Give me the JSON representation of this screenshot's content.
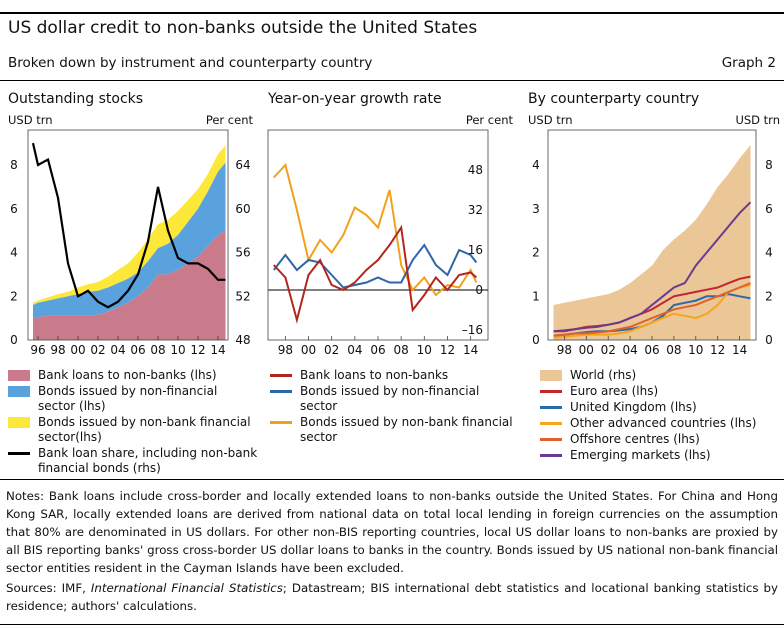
{
  "title": "US dollar credit to non-banks outside the United States",
  "subtitle": "Broken down by instrument and counterparty country",
  "graph_label": "Graph 2",
  "colors": {
    "bank_loans_area": "#c97a8b",
    "bonds_nonfin_area": "#5aa2dd",
    "bonds_nonbankfin_area": "#fde83a",
    "loan_share_line": "#000000",
    "growth_bank": "#b3261e",
    "growth_nonfin": "#2f66a8",
    "growth_nonbankfin": "#f0a11c",
    "world_area": "#ebc697",
    "euro_area": "#c1272d",
    "uk": "#2c6aa8",
    "other_adv": "#f7a51c",
    "offshore": "#e0612b",
    "emerging": "#6b3a91"
  },
  "chart_data": [
    {
      "type": "area",
      "panel_title": "Outstanding stocks",
      "ylabel_left": "USD trn",
      "ylabel_right": "Per cent",
      "x_ticks": [
        "96",
        "98",
        "00",
        "02",
        "04",
        "06",
        "08",
        "10",
        "12",
        "14"
      ],
      "x_range": [
        1995.0,
        2015.0
      ],
      "ylim_left": [
        0,
        9.6
      ],
      "ylim_right": [
        48,
        67.2
      ],
      "y_ticks_left": [
        "0",
        "2",
        "4",
        "6",
        "8"
      ],
      "y_ticks_right": [
        "48",
        "52",
        "56",
        "60",
        "64"
      ],
      "x": [
        1995.5,
        1996,
        1997,
        1998,
        1999,
        2000,
        2001,
        2002,
        2003,
        2004,
        2005,
        2006,
        2007,
        2008,
        2009,
        2010,
        2011,
        2012,
        2013,
        2014,
        2014.75
      ],
      "series": [
        {
          "name": "Bank loans to non-banks (lhs)",
          "values": [
            1.0,
            1.05,
            1.1,
            1.1,
            1.1,
            1.1,
            1.1,
            1.15,
            1.3,
            1.5,
            1.7,
            2.0,
            2.4,
            3.0,
            3.0,
            3.2,
            3.5,
            3.8,
            4.3,
            4.8,
            5.0
          ]
        },
        {
          "name": "Bonds issued by non-financial sector (lhs)",
          "values": [
            0.6,
            0.65,
            0.7,
            0.8,
            0.9,
            1.0,
            1.1,
            1.1,
            1.1,
            1.1,
            1.1,
            1.1,
            1.2,
            1.2,
            1.4,
            1.6,
            1.9,
            2.2,
            2.5,
            2.9,
            3.1
          ]
        },
        {
          "name": "Bonds issued by non-bank financial sector(lhs)",
          "values": [
            0.1,
            0.1,
            0.15,
            0.2,
            0.2,
            0.3,
            0.35,
            0.4,
            0.5,
            0.6,
            0.7,
            0.9,
            1.0,
            1.1,
            1.1,
            1.1,
            1.0,
            0.9,
            0.8,
            0.8,
            0.8
          ]
        },
        {
          "name": "Bank loan share, including non-bank financial bonds (rhs)",
          "values": [
            66.0,
            64.0,
            64.5,
            61.0,
            55.0,
            52.0,
            52.5,
            51.5,
            51.0,
            51.5,
            52.5,
            54.0,
            57.0,
            62.0,
            58.0,
            55.5,
            55.0,
            55.0,
            54.5,
            53.5,
            53.5
          ]
        }
      ],
      "legend": [
        "Bank loans to non-banks (lhs)",
        "Bonds issued by non-financial sector (lhs)",
        "Bonds issued by non-bank financial sector(lhs)",
        "Bank loan share, including non-bank financial bonds (rhs)"
      ]
    },
    {
      "type": "line",
      "panel_title": "Year-on-year growth rate",
      "ylabel_right": "Per cent",
      "x_ticks": [
        "98",
        "00",
        "02",
        "04",
        "06",
        "08",
        "10",
        "12",
        "14"
      ],
      "x_range": [
        1996.5,
        2015.5
      ],
      "ylim": [
        -20,
        64
      ],
      "y_ticks": [
        "–16",
        "0",
        "16",
        "32",
        "48"
      ],
      "x": [
        1997,
        1998,
        1999,
        2000,
        2001,
        2002,
        2003,
        2004,
        2005,
        2006,
        2007,
        2008,
        2009,
        2010,
        2011,
        2012,
        2013,
        2014,
        2014.5
      ],
      "series": [
        {
          "name": "Bank loans to non-banks",
          "values": [
            10,
            5,
            -12,
            6,
            12,
            2,
            0,
            3,
            8,
            12,
            18,
            25,
            -8,
            -2,
            5,
            0,
            6,
            7,
            5
          ]
        },
        {
          "name": "Bonds issued by non-financial sector",
          "values": [
            8,
            14,
            8,
            12,
            11,
            6,
            1,
            2,
            3,
            5,
            3,
            3,
            12,
            18,
            10,
            6,
            16,
            14,
            11
          ]
        },
        {
          "name": "Bonds issued by non-bank financial sector",
          "values": [
            45,
            50,
            32,
            12,
            20,
            15,
            22,
            33,
            30,
            25,
            40,
            10,
            0,
            5,
            -2,
            2,
            1,
            8,
            3
          ]
        }
      ],
      "legend": [
        "Bank loans to non-banks",
        "Bonds issued by non-financial sector",
        "Bonds issued by non-bank financial sector"
      ]
    },
    {
      "type": "area",
      "panel_title": "By counterparty country",
      "ylabel_left": "USD trn",
      "ylabel_right": "USD trn",
      "x_ticks": [
        "98",
        "00",
        "02",
        "04",
        "06",
        "08",
        "10",
        "12",
        "14"
      ],
      "x_range": [
        1996.5,
        2015.5
      ],
      "ylim_left": [
        0,
        4.8
      ],
      "ylim_right": [
        0,
        9.6
      ],
      "y_ticks_left": [
        "0",
        "1",
        "2",
        "3",
        "4"
      ],
      "y_ticks_right": [
        "0",
        "2",
        "4",
        "6",
        "8"
      ],
      "x": [
        1997,
        1998,
        1999,
        2000,
        2001,
        2002,
        2003,
        2004,
        2005,
        2006,
        2007,
        2008,
        2009,
        2010,
        2011,
        2012,
        2013,
        2014,
        2015
      ],
      "series": [
        {
          "name": "World (rhs)",
          "values": [
            1.6,
            1.7,
            1.8,
            1.9,
            2.0,
            2.1,
            2.3,
            2.6,
            3.0,
            3.4,
            4.1,
            4.6,
            5.0,
            5.5,
            6.2,
            7.0,
            7.6,
            8.3,
            8.9
          ]
        },
        {
          "name": "Euro area (lhs)",
          "values": [
            0.2,
            0.2,
            0.25,
            0.3,
            0.32,
            0.35,
            0.4,
            0.5,
            0.6,
            0.7,
            0.85,
            1.0,
            1.05,
            1.1,
            1.15,
            1.2,
            1.3,
            1.4,
            1.45
          ]
        },
        {
          "name": "United Kingdom (lhs)",
          "values": [
            0.1,
            0.12,
            0.15,
            0.18,
            0.2,
            0.2,
            0.22,
            0.25,
            0.3,
            0.4,
            0.55,
            0.8,
            0.85,
            0.9,
            1.0,
            1.0,
            1.05,
            1.0,
            0.95
          ]
        },
        {
          "name": "Other advanced countries (lhs)",
          "values": [
            0.05,
            0.07,
            0.1,
            0.12,
            0.12,
            0.12,
            0.15,
            0.2,
            0.3,
            0.4,
            0.5,
            0.6,
            0.55,
            0.5,
            0.6,
            0.8,
            1.1,
            1.2,
            1.25
          ]
        },
        {
          "name": "Offshore centres (lhs)",
          "values": [
            0.1,
            0.12,
            0.15,
            0.15,
            0.17,
            0.2,
            0.25,
            0.3,
            0.4,
            0.5,
            0.6,
            0.7,
            0.75,
            0.8,
            0.9,
            1.0,
            1.1,
            1.2,
            1.3
          ]
        },
        {
          "name": "Emerging markets (lhs)",
          "values": [
            0.2,
            0.22,
            0.25,
            0.28,
            0.3,
            0.35,
            0.4,
            0.5,
            0.6,
            0.8,
            1.0,
            1.2,
            1.3,
            1.7,
            2.0,
            2.3,
            2.6,
            2.9,
            3.15
          ]
        }
      ],
      "legend": [
        "World (rhs)",
        "Euro area (lhs)",
        "United Kingdom (lhs)",
        "Other advanced countries (lhs)",
        "Offshore centres (lhs)",
        "Emerging markets (lhs)"
      ]
    }
  ],
  "notes": "Notes: Bank loans include cross-border and locally extended loans to non-banks outside the United States. For China and Hong Kong SAR, locally extended loans are derived from national data on total local lending in foreign currencies on the assumption that 80% are denominated in US dollars. For other non-BIS reporting countries, local US dollar loans to non-banks are proxied by all BIS reporting banks' gross cross-border US dollar loans to banks in the country. Bonds issued by US national non-bank financial sector entities resident in the Cayman Islands have been excluded.",
  "sources": {
    "prefix": "Sources: IMF, ",
    "italic": "International Financial Statistics",
    "suffix": "; Datastream; BIS international debt statistics and locational banking statistics by residence; authors' calculations."
  }
}
